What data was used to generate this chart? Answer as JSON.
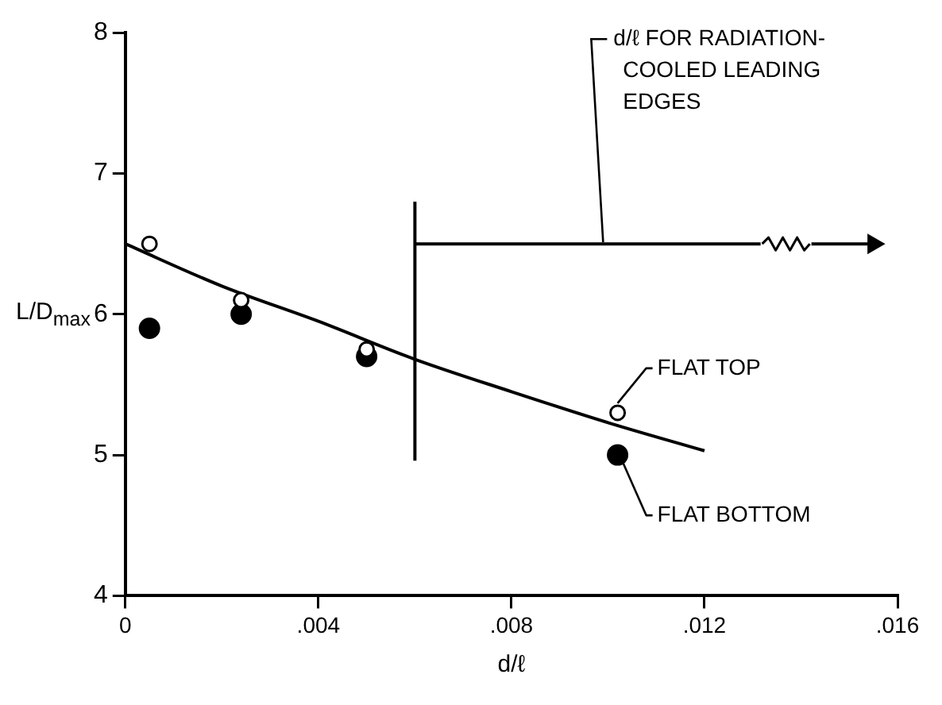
{
  "chart_data": {
    "type": "scatter",
    "xlabel": "d/ℓ",
    "ylabel": "L/D$_{max}$",
    "xlim": [
      0,
      0.016
    ],
    "ylim": [
      4,
      8
    ],
    "xticks": [
      0,
      {
        "value": 0.004,
        "label": ".004"
      },
      {
        "value": 0.008,
        "label": ".008"
      },
      {
        "value": 0.012,
        "label": ".012"
      },
      {
        "value": 0.016,
        "label": ".016"
      }
    ],
    "yticks": [
      4,
      5,
      6,
      7,
      8
    ],
    "grid": false,
    "legend": false,
    "marker": "circle",
    "series": [
      {
        "name": "FLAT TOP",
        "color": "#000000",
        "x": [
          0.0005,
          0.0024,
          0.005,
          0.0102
        ],
        "values": [
          6.5,
          6.1,
          5.75,
          5.3
        ]
      },
      {
        "name": "FLAT BOTTOM",
        "color": "#000000",
        "x": [
          0.0005,
          0.0024,
          0.005,
          0.0102
        ],
        "values": [
          5.9,
          6.0,
          5.7,
          5.0
        ]
      },
      {
        "type": "line",
        "color": "#000000",
        "marker": "none",
        "x": [
          0,
          0.002,
          0.004,
          0.006,
          0.008,
          0.01,
          0.012
        ],
        "values": [
          6.5,
          6.2,
          5.95,
          5.68,
          5.45,
          5.23,
          5.03
        ]
      },
      {
        "type": "line",
        "color": "#000000",
        "marker": "triangle",
        "x": [
          0.006,
          0.0155
        ],
        "values": [
          6.5,
          6.5
        ]
      }
    ],
    "ref_lines": [
      {
        "axis": "x",
        "value": 0.006
      }
    ],
    "annotations": [
      {
        "text": "d/ℓ FOR RADIATION-COOLED LEADING EDGES",
        "x": 0.0099,
        "y": 6.5
      }
    ]
  }
}
